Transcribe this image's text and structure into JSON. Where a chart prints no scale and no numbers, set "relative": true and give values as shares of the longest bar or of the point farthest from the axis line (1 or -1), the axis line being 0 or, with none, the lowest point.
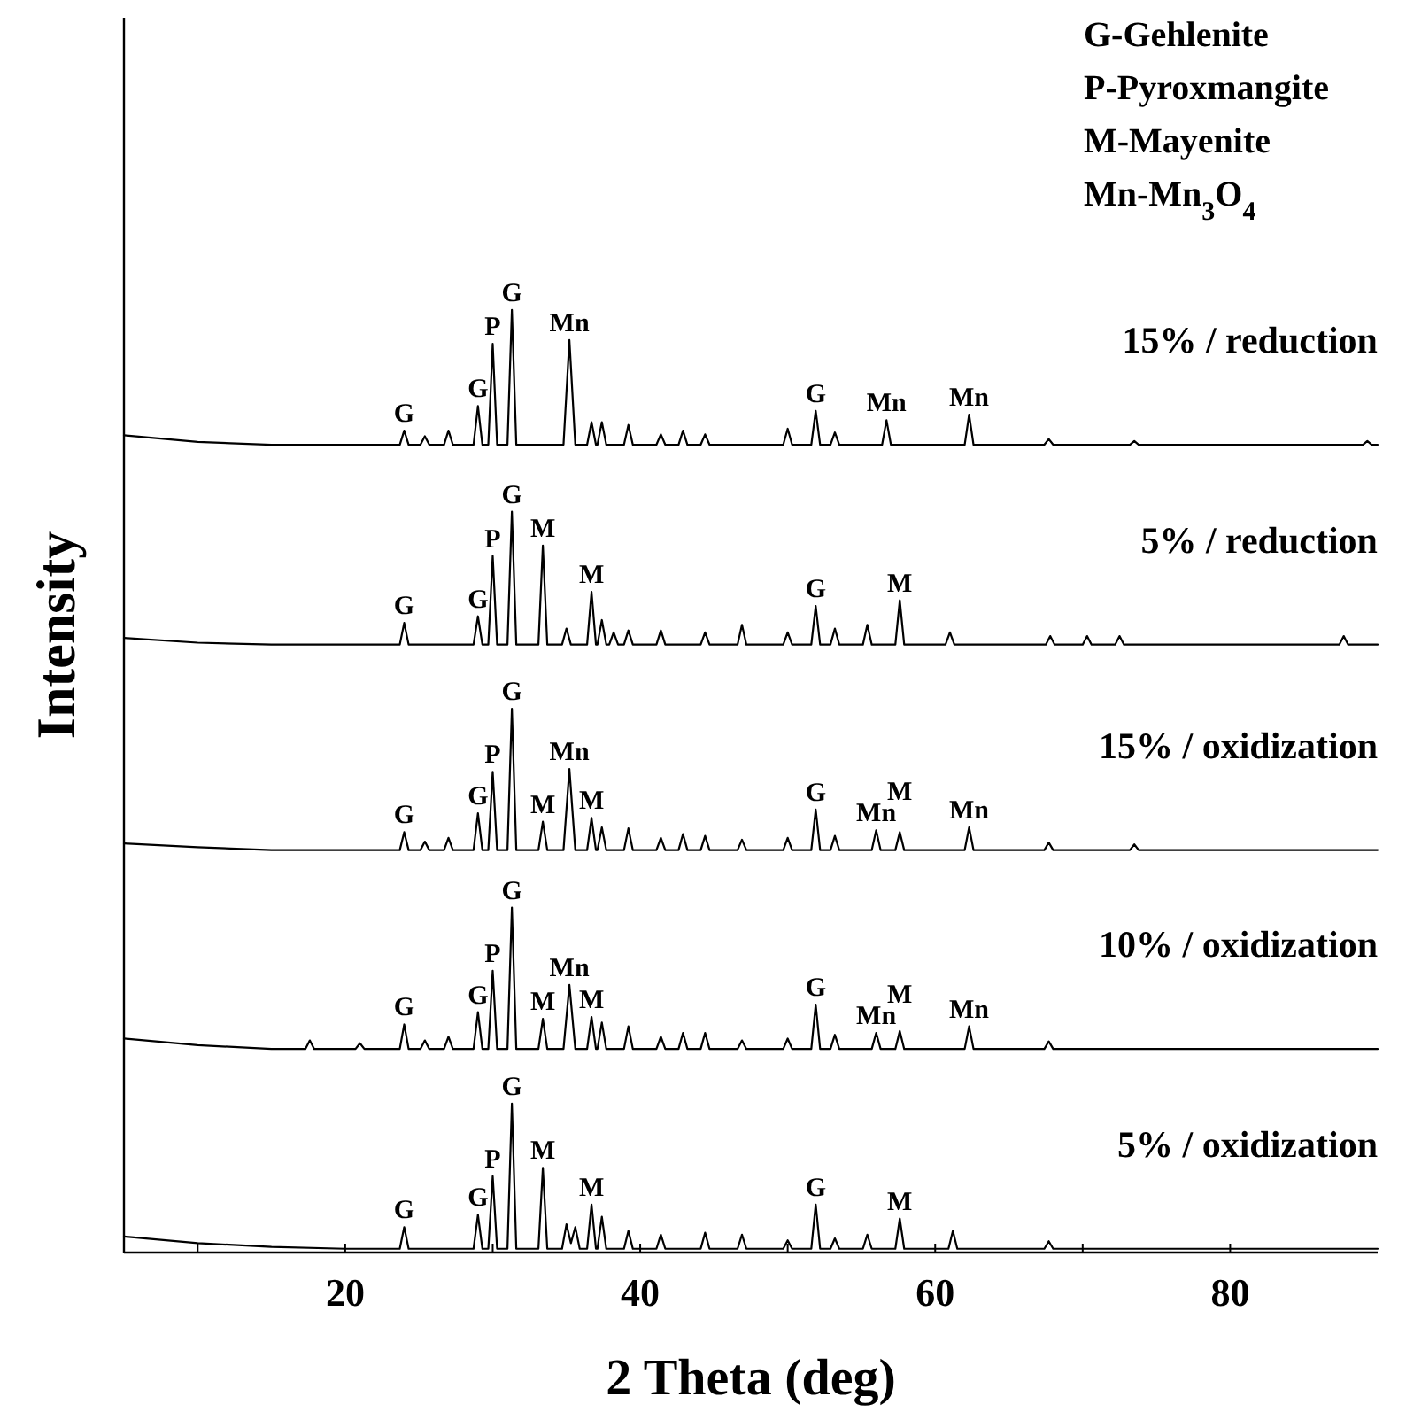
{
  "chart_data": {
    "type": "line",
    "relative": true,
    "xlabel": "2 Theta (deg)",
    "ylabel": "Intensity",
    "xlim": [
      5,
      90
    ],
    "xticks": [
      {
        "value": 10,
        "label": null
      },
      20,
      {
        "value": 30,
        "label": null
      },
      40,
      {
        "value": 50,
        "label": null
      },
      60,
      {
        "value": 70,
        "label": null
      },
      80
    ],
    "series": [
      {
        "name": "15% / reduction",
        "color": "#000000",
        "x": [
          5,
          10,
          15,
          20,
          23.7,
          24.0,
          24.3,
          25.1,
          25.4,
          25.7,
          26.7,
          27.0,
          27.3,
          28.7,
          29.0,
          29.3,
          29.7,
          30.0,
          30.3,
          31.0,
          31.3,
          31.6,
          34.8,
          35.2,
          35.6,
          36.4,
          36.7,
          37.0,
          37.1,
          37.4,
          37.7,
          38.9,
          39.2,
          39.5,
          41.1,
          41.4,
          41.7,
          42.6,
          42.9,
          43.2,
          44.1,
          44.4,
          44.7,
          49.7,
          50.0,
          50.3,
          51.6,
          51.9,
          52.2,
          52.9,
          53.2,
          53.5,
          56.4,
          56.7,
          57.0,
          62.0,
          62.3,
          62.6,
          67.4,
          67.7,
          68.0,
          73.2,
          73.5,
          73.8,
          89.0,
          89.3,
          89.6,
          90
        ],
        "values": [
          0.867,
          0.86,
          0.857,
          0.857,
          0.857,
          0.872,
          0.857,
          0.857,
          0.866,
          0.857,
          0.857,
          0.872,
          0.857,
          0.857,
          0.898,
          0.857,
          0.857,
          0.964,
          0.857,
          0.857,
          1,
          0.857,
          0.857,
          0.968,
          0.857,
          0.857,
          0.881,
          0.857,
          0.857,
          0.881,
          0.857,
          0.857,
          0.878,
          0.857,
          0.857,
          0.868,
          0.857,
          0.857,
          0.872,
          0.857,
          0.857,
          0.868,
          0.857,
          0.857,
          0.874,
          0.857,
          0.857,
          0.893,
          0.857,
          0.857,
          0.87,
          0.857,
          0.857,
          0.883,
          0.857,
          0.857,
          0.889,
          0.857,
          0.857,
          0.863,
          0.857,
          0.857,
          0.861,
          0.857,
          0.857,
          0.861,
          0.857,
          0.857
        ]
      },
      {
        "name": "5% / reduction",
        "color": "#000000",
        "x": [
          5,
          10,
          15,
          20,
          23.7,
          24.0,
          24.3,
          28.7,
          29.0,
          29.3,
          29.7,
          30.0,
          30.3,
          31.0,
          31.3,
          31.6,
          33.1,
          33.4,
          33.7,
          34.7,
          35.0,
          35.3,
          36.4,
          36.7,
          37.0,
          37.1,
          37.4,
          37.7,
          37.9,
          38.2,
          38.5,
          38.9,
          39.2,
          39.5,
          41.1,
          41.4,
          41.7,
          44.1,
          44.4,
          44.7,
          46.6,
          46.9,
          47.2,
          49.7,
          50.0,
          50.3,
          51.6,
          51.9,
          52.2,
          52.9,
          53.2,
          53.5,
          55.1,
          55.4,
          55.7,
          57.3,
          57.6,
          57.9,
          60.7,
          61.0,
          61.3,
          67.5,
          67.8,
          68.1,
          70.0,
          70.3,
          70.6,
          72.2,
          72.5,
          72.8,
          87.4,
          87.7,
          88.0,
          90
        ],
        "values": [
          0.652,
          0.647,
          0.645,
          0.645,
          0.645,
          0.668,
          0.645,
          0.645,
          0.675,
          0.645,
          0.645,
          0.739,
          0.645,
          0.645,
          0.786,
          0.645,
          0.645,
          0.75,
          0.645,
          0.645,
          0.662,
          0.645,
          0.645,
          0.701,
          0.645,
          0.645,
          0.671,
          0.645,
          0.645,
          0.658,
          0.645,
          0.645,
          0.66,
          0.645,
          0.645,
          0.66,
          0.645,
          0.645,
          0.658,
          0.645,
          0.645,
          0.666,
          0.645,
          0.645,
          0.658,
          0.645,
          0.645,
          0.686,
          0.645,
          0.645,
          0.662,
          0.645,
          0.645,
          0.666,
          0.645,
          0.645,
          0.692,
          0.645,
          0.645,
          0.658,
          0.645,
          0.645,
          0.654,
          0.645,
          0.645,
          0.654,
          0.645,
          0.645,
          0.654,
          0.645,
          0.645,
          0.654,
          0.645,
          0.645
        ]
      },
      {
        "name": "15% / oxidization",
        "color": "#000000",
        "x": [
          5,
          10,
          15,
          20,
          23.7,
          24.0,
          24.3,
          25.1,
          25.4,
          25.7,
          26.7,
          27.0,
          27.3,
          28.7,
          29.0,
          29.3,
          29.7,
          30.0,
          30.3,
          31.0,
          31.3,
          31.6,
          33.1,
          33.4,
          33.7,
          34.8,
          35.2,
          35.6,
          36.4,
          36.7,
          37.0,
          37.1,
          37.4,
          37.7,
          38.9,
          39.2,
          39.5,
          41.1,
          41.4,
          41.7,
          42.6,
          42.9,
          43.2,
          44.1,
          44.4,
          44.7,
          46.6,
          46.9,
          47.2,
          49.7,
          50.0,
          50.3,
          51.6,
          51.9,
          52.2,
          52.9,
          53.2,
          53.5,
          55.7,
          56.0,
          56.3,
          57.3,
          57.6,
          57.9,
          62.0,
          62.3,
          62.6,
          67.4,
          67.7,
          68.0,
          73.2,
          73.5,
          73.8,
          90
        ],
        "values": [
          0.434,
          0.43,
          0.427,
          0.427,
          0.427,
          0.446,
          0.427,
          0.427,
          0.436,
          0.427,
          0.427,
          0.44,
          0.427,
          0.427,
          0.466,
          0.427,
          0.427,
          0.51,
          0.427,
          0.427,
          0.577,
          0.427,
          0.427,
          0.457,
          0.427,
          0.427,
          0.513,
          0.427,
          0.427,
          0.461,
          0.427,
          0.427,
          0.451,
          0.427,
          0.427,
          0.45,
          0.427,
          0.427,
          0.44,
          0.427,
          0.427,
          0.444,
          0.427,
          0.427,
          0.442,
          0.427,
          0.427,
          0.438,
          0.427,
          0.427,
          0.44,
          0.427,
          0.427,
          0.47,
          0.427,
          0.427,
          0.442,
          0.427,
          0.427,
          0.448,
          0.427,
          0.427,
          0.446,
          0.427,
          0.427,
          0.451,
          0.427,
          0.427,
          0.435,
          0.427,
          0.427,
          0.433,
          0.427,
          0.427
        ]
      },
      {
        "name": "10% / oxidization",
        "color": "#000000",
        "x": [
          5,
          10,
          15,
          17.3,
          17.6,
          17.9,
          20.7,
          21.0,
          21.3,
          23.7,
          24.0,
          24.3,
          25.1,
          25.4,
          25.7,
          26.7,
          27.0,
          27.3,
          28.7,
          29.0,
          29.3,
          29.7,
          30.0,
          30.3,
          31.0,
          31.3,
          31.6,
          33.1,
          33.4,
          33.7,
          34.8,
          35.2,
          35.6,
          36.4,
          36.7,
          37.0,
          37.1,
          37.4,
          37.7,
          38.9,
          39.2,
          39.5,
          41.1,
          41.4,
          41.7,
          42.6,
          42.9,
          43.2,
          44.1,
          44.4,
          44.7,
          46.6,
          46.9,
          47.2,
          49.7,
          50.0,
          50.3,
          51.6,
          51.9,
          52.2,
          52.9,
          53.2,
          53.5,
          55.7,
          56.0,
          56.3,
          57.3,
          57.6,
          57.9,
          62.0,
          62.3,
          62.6,
          67.4,
          67.7,
          68.0,
          90
        ],
        "values": [
          0.227,
          0.22,
          0.216,
          0.216,
          0.225,
          0.216,
          0.216,
          0.222,
          0.216,
          0.216,
          0.242,
          0.216,
          0.216,
          0.225,
          0.216,
          0.216,
          0.229,
          0.216,
          0.216,
          0.255,
          0.216,
          0.216,
          0.299,
          0.216,
          0.216,
          0.366,
          0.216,
          0.216,
          0.248,
          0.216,
          0.216,
          0.284,
          0.216,
          0.216,
          0.25,
          0.216,
          0.216,
          0.244,
          0.216,
          0.216,
          0.24,
          0.216,
          0.216,
          0.229,
          0.216,
          0.216,
          0.233,
          0.216,
          0.216,
          0.233,
          0.216,
          0.216,
          0.225,
          0.216,
          0.216,
          0.227,
          0.216,
          0.216,
          0.263,
          0.216,
          0.216,
          0.231,
          0.216,
          0.216,
          0.233,
          0.216,
          0.216,
          0.235,
          0.216,
          0.216,
          0.24,
          0.216,
          0.216,
          0.224,
          0.216,
          0.216
        ]
      },
      {
        "name": "5% / oxidization",
        "color": "#000000",
        "x": [
          5,
          10,
          15,
          20,
          23.7,
          24.0,
          24.3,
          28.7,
          29.0,
          29.3,
          29.7,
          30.0,
          30.3,
          31.0,
          31.3,
          31.6,
          33.1,
          33.4,
          33.7,
          34.7,
          35.0,
          35.3,
          35.6,
          35.9,
          36.4,
          36.7,
          37.0,
          37.1,
          37.4,
          37.7,
          38.9,
          39.2,
          39.5,
          41.1,
          41.4,
          41.7,
          44.1,
          44.4,
          44.7,
          46.6,
          46.9,
          47.2,
          49.7,
          50.0,
          50.3,
          51.6,
          51.9,
          52.2,
          52.9,
          53.2,
          53.5,
          55.1,
          55.4,
          55.7,
          57.3,
          57.6,
          57.9,
          60.9,
          61.2,
          61.5,
          67.4,
          67.7,
          68.0,
          90
        ],
        "values": [
          0.017,
          0.01,
          0.006,
          0.004,
          0.004,
          0.027,
          0.004,
          0.004,
          0.04,
          0.004,
          0.004,
          0.081,
          0.004,
          0.004,
          0.158,
          0.004,
          0.004,
          0.09,
          0.004,
          0.004,
          0.03,
          0.01,
          0.027,
          0.004,
          0.004,
          0.051,
          0.004,
          0.004,
          0.038,
          0.004,
          0.004,
          0.023,
          0.004,
          0.004,
          0.019,
          0.004,
          0.004,
          0.021,
          0.004,
          0.004,
          0.019,
          0.004,
          0.004,
          0.013,
          0.004,
          0.004,
          0.051,
          0.004,
          0.004,
          0.015,
          0.004,
          0.004,
          0.019,
          0.004,
          0.004,
          0.036,
          0.004,
          0.004,
          0.023,
          0.004,
          0.004,
          0.012,
          0.004,
          0.004
        ]
      }
    ],
    "annotations": [
      "G-Gehlenite",
      "P-Pyroxmangite",
      "M-Mayenite",
      "Mn-Mn$_{3}$O$_{4}$",
      {
        "text": "G",
        "x": 24.0,
        "y": 0.872
      },
      {
        "text": "G",
        "x": 29.0,
        "y": 0.898
      },
      {
        "text": "P",
        "x": 30.0,
        "y": 0.964
      },
      {
        "text": "G",
        "x": 31.3,
        "y": 1
      },
      {
        "text": "Mn",
        "x": 35.2,
        "y": 0.968
      },
      {
        "text": "G",
        "x": 51.9,
        "y": 0.893
      },
      {
        "text": "Mn",
        "x": 56.7,
        "y": 0.883
      },
      {
        "text": "Mn",
        "x": 62.3,
        "y": 0.889
      },
      {
        "text": "G",
        "x": 24.0,
        "y": 0.668
      },
      {
        "text": "G",
        "x": 29.0,
        "y": 0.675
      },
      {
        "text": "P",
        "x": 30.0,
        "y": 0.739
      },
      {
        "text": "G",
        "x": 31.3,
        "y": 0.786
      },
      {
        "text": "M",
        "x": 33.4,
        "y": 0.75
      },
      {
        "text": "M",
        "x": 36.7,
        "y": 0.701
      },
      {
        "text": "G",
        "x": 51.9,
        "y": 0.686
      },
      {
        "text": "M",
        "x": 57.6,
        "y": 0.692
      },
      {
        "text": "G",
        "x": 24.0,
        "y": 0.446
      },
      {
        "text": "G",
        "x": 29.0,
        "y": 0.466
      },
      {
        "text": "P",
        "x": 30.0,
        "y": 0.51
      },
      {
        "text": "G",
        "x": 31.3,
        "y": 0.577
      },
      {
        "text": "M",
        "x": 33.4,
        "y": 0.457
      },
      {
        "text": "Mn",
        "x": 35.2,
        "y": 0.513
      },
      {
        "text": "M",
        "x": 36.7,
        "y": 0.461
      },
      {
        "text": "G",
        "x": 51.9,
        "y": 0.47
      },
      {
        "text": "Mn",
        "x": 56.0,
        "y": 0.448
      },
      {
        "text": "M",
        "x": 57.6,
        "y": 0.446
      },
      {
        "text": "Mn",
        "x": 62.3,
        "y": 0.451
      },
      {
        "text": "G",
        "x": 24.0,
        "y": 0.242
      },
      {
        "text": "G",
        "x": 29.0,
        "y": 0.255
      },
      {
        "text": "P",
        "x": 30.0,
        "y": 0.299
      },
      {
        "text": "G",
        "x": 31.3,
        "y": 0.366
      },
      {
        "text": "M",
        "x": 33.4,
        "y": 0.248
      },
      {
        "text": "Mn",
        "x": 35.2,
        "y": 0.284
      },
      {
        "text": "M",
        "x": 36.7,
        "y": 0.25
      },
      {
        "text": "G",
        "x": 51.9,
        "y": 0.263
      },
      {
        "text": "Mn",
        "x": 56.0,
        "y": 0.233
      },
      {
        "text": "M",
        "x": 57.6,
        "y": 0.235
      },
      {
        "text": "Mn",
        "x": 62.3,
        "y": 0.24
      },
      {
        "text": "G",
        "x": 24.0,
        "y": 0.027
      },
      {
        "text": "G",
        "x": 29.0,
        "y": 0.04
      },
      {
        "text": "P",
        "x": 30.0,
        "y": 0.081
      },
      {
        "text": "G",
        "x": 31.3,
        "y": 0.158
      },
      {
        "text": "M",
        "x": 33.4,
        "y": 0.09
      },
      {
        "text": "M",
        "x": 36.7,
        "y": 0.051
      },
      {
        "text": "G",
        "x": 51.9,
        "y": 0.051
      },
      {
        "text": "M",
        "x": 57.6,
        "y": 0.036
      }
    ]
  }
}
